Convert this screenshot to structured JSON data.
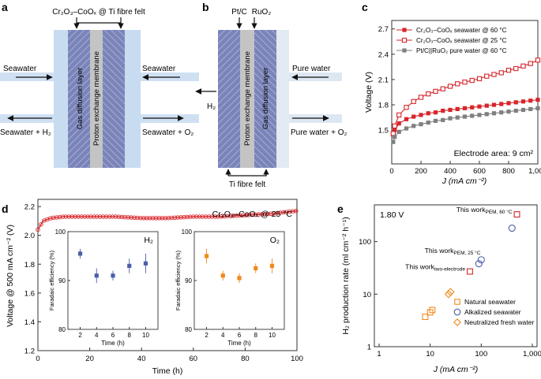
{
  "panels": {
    "a": {
      "letter": "a",
      "top_label": "Cr₂O₃–CoOₓ @ Ti fibre felt",
      "gas_layer": "Gas diffusion layer",
      "membrane": "Proton exchange membrane",
      "in_left": "Seawater",
      "out_left": "Seawater + H₂",
      "in_right": "Seawater",
      "out_right": "Seawater + O₂"
    },
    "b": {
      "letter": "b",
      "label_ptc": "Pt/C",
      "label_ruo2": "RuO₂",
      "membrane": "Proton exchange membrane",
      "gas_layer": "Gas diffusion layer",
      "h2_out": "H₂",
      "in_right": "Pure water",
      "out_right": "Pure water + O₂",
      "bottom_label": "Ti fibre felt"
    }
  },
  "chart_data": [
    {
      "id": "c",
      "letter": "c",
      "type": "line",
      "xlabel": "J (mA cm⁻²)",
      "ylabel": "Voltage (V)",
      "xlim": [
        0,
        1000
      ],
      "ylim": [
        1.1,
        2.8
      ],
      "xticks": [
        "0",
        "200",
        "400",
        "600",
        "800",
        "1,000"
      ],
      "yticks": [
        "1.5",
        "1.8",
        "2.1",
        "2.4",
        "2.7"
      ],
      "annotation": "Electrode area: 9 cm²",
      "x": [
        10,
        20,
        50,
        100,
        150,
        200,
        250,
        300,
        350,
        400,
        450,
        500,
        550,
        600,
        650,
        700,
        750,
        800,
        850,
        900,
        950,
        1000
      ],
      "series": [
        {
          "name": "Cr₂O₃–CoOₓ seawater @ 60 °C",
          "color": "#d7262b",
          "marker": "filled-square",
          "values": [
            1.45,
            1.5,
            1.58,
            1.63,
            1.66,
            1.68,
            1.7,
            1.71,
            1.73,
            1.74,
            1.75,
            1.76,
            1.77,
            1.78,
            1.79,
            1.8,
            1.81,
            1.82,
            1.83,
            1.84,
            1.85,
            1.86
          ]
        },
        {
          "name": "Cr₂O₃–CoOₓ seawater @ 25 °C",
          "color": "#d7262b",
          "marker": "open-square",
          "values": [
            1.46,
            1.55,
            1.68,
            1.77,
            1.84,
            1.89,
            1.93,
            1.96,
            1.99,
            2.02,
            2.05,
            2.07,
            2.09,
            2.11,
            2.14,
            2.16,
            2.18,
            2.21,
            2.23,
            2.26,
            2.29,
            2.33
          ]
        },
        {
          "name": "Pt/C||RuO₂ pure water @ 60 °C",
          "color": "#7f7f7f",
          "marker": "filled-square",
          "values": [
            1.36,
            1.42,
            1.48,
            1.52,
            1.55,
            1.57,
            1.59,
            1.61,
            1.62,
            1.64,
            1.65,
            1.66,
            1.67,
            1.68,
            1.69,
            1.7,
            1.71,
            1.72,
            1.73,
            1.74,
            1.75,
            1.76
          ]
        }
      ]
    },
    {
      "id": "d",
      "letter": "d",
      "type": "line",
      "xlabel": "Time (h)",
      "ylabel": "Voltage @ 500 mA cm⁻² (V)",
      "xlim": [
        0,
        100
      ],
      "ylim": [
        1.2,
        2.25
      ],
      "xticks": [
        "0",
        "20",
        "40",
        "60",
        "80",
        "100"
      ],
      "yticks": [
        "1.2",
        "1.4",
        "1.6",
        "1.8",
        "2.0",
        "2.2"
      ],
      "annotation": "Cr₂O₃–CoOₓ @ 25 °C",
      "series": [
        {
          "name": "Voltage",
          "color": "#d7262b",
          "x": [
            0,
            2,
            5,
            10,
            20,
            30,
            40,
            50,
            60,
            70,
            80,
            90,
            95,
            100
          ],
          "values": [
            2.04,
            2.1,
            2.12,
            2.13,
            2.13,
            2.13,
            2.12,
            2.12,
            2.13,
            2.13,
            2.14,
            2.15,
            2.16,
            2.17
          ]
        }
      ],
      "insets": [
        {
          "id": "h2",
          "title": "H₂",
          "color": "#4c5fa8",
          "ylabel": "Faradaic efficiency (%)",
          "xlabel": "Time (h)",
          "xticks": [
            "2",
            "4",
            "6",
            "8",
            "10"
          ],
          "yticks": [
            "80",
            "90",
            "100"
          ],
          "ylim": [
            80,
            100
          ],
          "x": [
            2,
            4,
            6,
            8,
            10
          ],
          "values": [
            95.5,
            91.0,
            91.0,
            93.0,
            93.5
          ],
          "errors": [
            1.0,
            1.5,
            1.0,
            1.5,
            2.0
          ]
        },
        {
          "id": "o2",
          "title": "O₂",
          "color": "#ef8a1d",
          "ylabel": "Faradaic efficiency (%)",
          "xlabel": "Time (h)",
          "xticks": [
            "2",
            "4",
            "6",
            "8",
            "10"
          ],
          "yticks": [
            "80",
            "90",
            "100"
          ],
          "ylim": [
            80,
            100
          ],
          "x": [
            2,
            4,
            6,
            8,
            10
          ],
          "values": [
            95.0,
            91.0,
            90.5,
            92.5,
            93.0
          ],
          "errors": [
            1.5,
            1.0,
            1.0,
            1.0,
            1.5
          ]
        }
      ]
    },
    {
      "id": "e",
      "letter": "e",
      "type": "scatter",
      "xscale": "log",
      "yscale": "log",
      "xlabel": "J (mA cm⁻²)",
      "ylabel": "H₂ production rate (ml cm⁻² h⁻¹)",
      "xlim": [
        1,
        1000
      ],
      "ylim": [
        1,
        500
      ],
      "xticks": [
        "1",
        "10",
        "100",
        "1,000"
      ],
      "yticks": [
        "1",
        "10",
        "100"
      ],
      "voltage_label": "1.80 V",
      "series": [
        {
          "name": "Natural seawater",
          "color": "#ef8a1d",
          "marker": "square",
          "x": [
            8,
            10,
            11,
            60,
            500
          ],
          "y": [
            3.7,
            4.5,
            5.0,
            27,
            330
          ]
        },
        {
          "name": "Alkalized seawater",
          "color": "#4c5fa8",
          "marker": "circle",
          "x": [
            90,
            100,
            400
          ],
          "y": [
            38,
            45,
            180
          ]
        },
        {
          "name": "Neutralized fresh water",
          "color": "#ef8a1d",
          "marker": "diamond",
          "x": [
            23,
            25
          ],
          "y": [
            10,
            11
          ]
        }
      ],
      "labels": [
        {
          "text": "This work",
          "sub": "PEM, 60 °C",
          "x": 500,
          "y": 330
        },
        {
          "text": "This work",
          "sub": "PEM, 25 °C",
          "x": 120,
          "y": 55
        },
        {
          "text": "This work",
          "sub": "two-electrode",
          "x": 60,
          "y": 27
        }
      ],
      "highlight": [
        {
          "x": 500,
          "y": 330,
          "color": "#d7262b"
        },
        {
          "x": 120,
          "y": 55,
          "color": "#d7262b"
        },
        {
          "x": 60,
          "y": 27,
          "color": "#d7262b"
        }
      ]
    }
  ]
}
